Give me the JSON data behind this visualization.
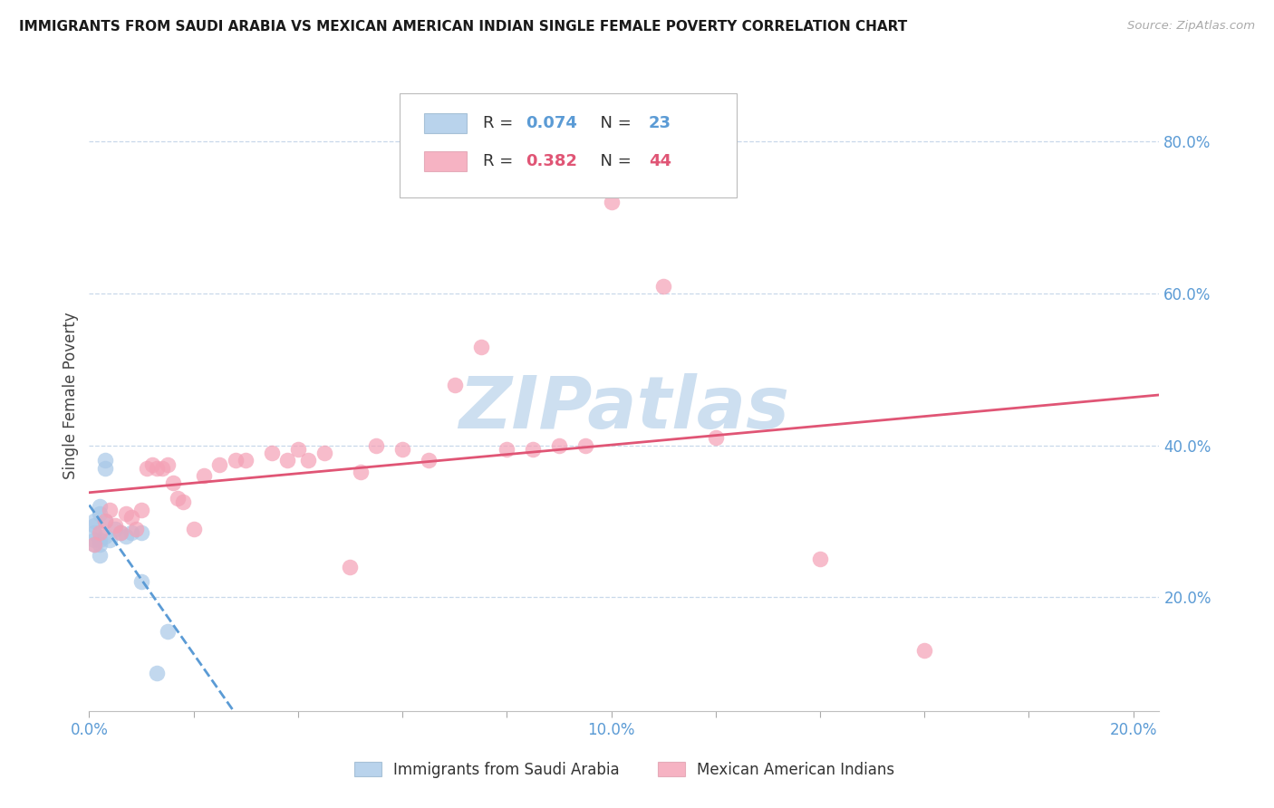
{
  "title": "IMMIGRANTS FROM SAUDI ARABIA VS MEXICAN AMERICAN INDIAN SINGLE FEMALE POVERTY CORRELATION CHART",
  "source": "Source: ZipAtlas.com",
  "ylabel": "Single Female Poverty",
  "legend_label_1": "Immigrants from Saudi Arabia",
  "legend_label_2": "Mexican American Indians",
  "R1": 0.074,
  "N1": 23,
  "R2": 0.382,
  "N2": 44,
  "color1": "#a8c8e8",
  "color2": "#f4a0b5",
  "trend1_color": "#5b9bd5",
  "trend2_color": "#e05575",
  "xlim": [
    0.0,
    0.205
  ],
  "ylim": [
    0.05,
    0.88
  ],
  "yticks": [
    0.2,
    0.4,
    0.6,
    0.8
  ],
  "xticks": [
    0.0,
    0.02,
    0.04,
    0.06,
    0.08,
    0.1,
    0.12,
    0.14,
    0.16,
    0.18,
    0.2
  ],
  "xtick_labels": [
    "0.0%",
    "",
    "",
    "",
    "",
    "10.0%",
    "",
    "",
    "",
    "",
    "20.0%"
  ],
  "background_color": "#ffffff",
  "watermark": "ZIPatlas",
  "watermark_color": "#cddff0",
  "scatter1_x": [
    0.001,
    0.001,
    0.001,
    0.001,
    0.001,
    0.002,
    0.002,
    0.002,
    0.002,
    0.002,
    0.003,
    0.003,
    0.003,
    0.003,
    0.004,
    0.005,
    0.006,
    0.007,
    0.008,
    0.01,
    0.01,
    0.013,
    0.015
  ],
  "scatter1_y": [
    0.27,
    0.275,
    0.285,
    0.295,
    0.3,
    0.27,
    0.275,
    0.31,
    0.32,
    0.255,
    0.28,
    0.3,
    0.37,
    0.38,
    0.275,
    0.29,
    0.285,
    0.28,
    0.285,
    0.285,
    0.22,
    0.1,
    0.155
  ],
  "scatter2_x": [
    0.001,
    0.002,
    0.003,
    0.004,
    0.005,
    0.006,
    0.007,
    0.008,
    0.009,
    0.01,
    0.011,
    0.012,
    0.013,
    0.014,
    0.015,
    0.016,
    0.017,
    0.018,
    0.02,
    0.022,
    0.025,
    0.028,
    0.03,
    0.035,
    0.038,
    0.04,
    0.042,
    0.045,
    0.05,
    0.052,
    0.055,
    0.06,
    0.065,
    0.07,
    0.075,
    0.08,
    0.085,
    0.09,
    0.095,
    0.1,
    0.11,
    0.12,
    0.14,
    0.16
  ],
  "scatter2_y": [
    0.27,
    0.285,
    0.3,
    0.315,
    0.295,
    0.285,
    0.31,
    0.305,
    0.29,
    0.315,
    0.37,
    0.375,
    0.37,
    0.37,
    0.375,
    0.35,
    0.33,
    0.325,
    0.29,
    0.36,
    0.375,
    0.38,
    0.38,
    0.39,
    0.38,
    0.395,
    0.38,
    0.39,
    0.24,
    0.365,
    0.4,
    0.395,
    0.38,
    0.48,
    0.53,
    0.395,
    0.395,
    0.4,
    0.4,
    0.72,
    0.61,
    0.41,
    0.25,
    0.13
  ]
}
